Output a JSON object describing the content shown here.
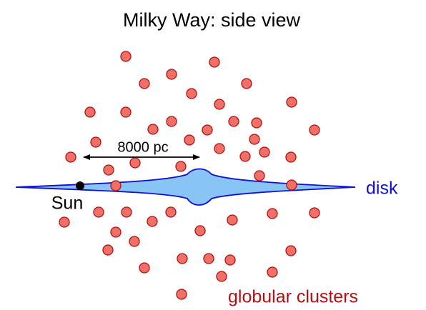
{
  "header": {
    "title": "Milky Way:  side view"
  },
  "labels": {
    "distance": "8000 pc",
    "sun": "Sun",
    "disk": "disk",
    "clusters": "globular clusters"
  }
}
